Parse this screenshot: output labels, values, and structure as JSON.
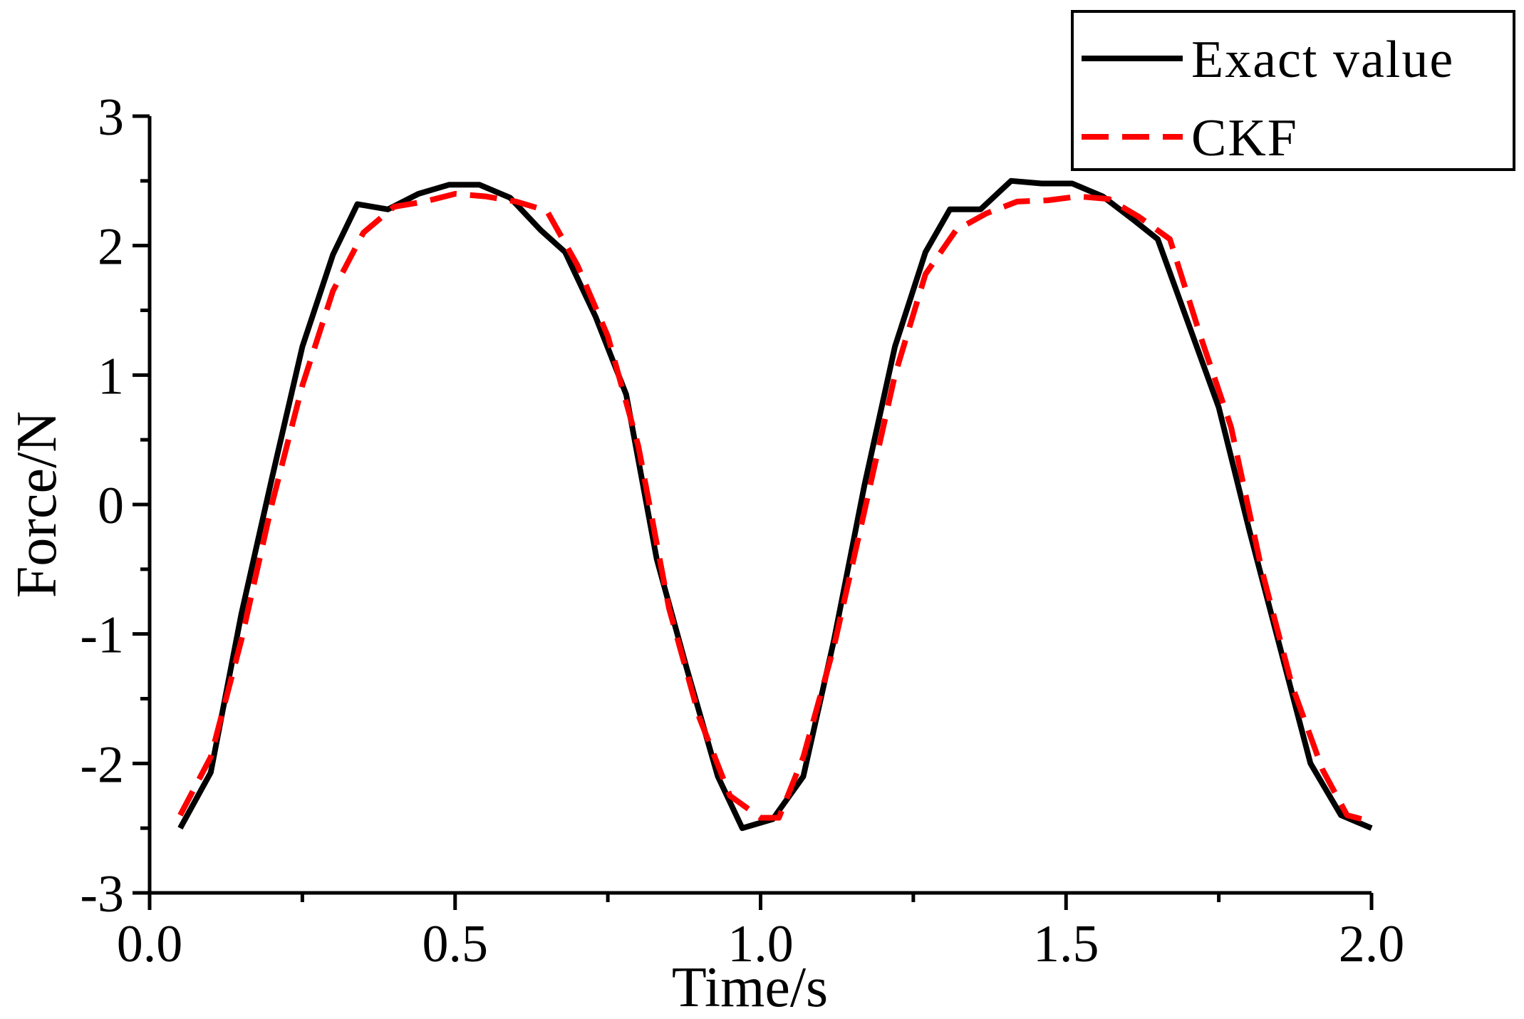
{
  "chart_data": {
    "type": "line",
    "title": "",
    "xlabel": "Time/s",
    "ylabel": "Force/N",
    "xlim": [
      0.0,
      2.0
    ],
    "ylim": [
      -3,
      3
    ],
    "xticks": [
      0.0,
      0.5,
      1.0,
      1.5,
      2.0
    ],
    "xtick_labels": [
      "0.0",
      "0.5",
      "1.0",
      "1.5",
      "2.0"
    ],
    "yticks": [
      -3,
      -2,
      -1,
      0,
      1,
      2,
      3
    ],
    "ytick_labels": [
      "-3",
      "-2",
      "-1",
      "0",
      "1",
      "2",
      "3"
    ],
    "legend_position": "top-right",
    "series": [
      {
        "name": "Exact value",
        "color": "#000000",
        "style": "solid",
        "x": [
          0.05,
          0.1,
          0.15,
          0.2,
          0.25,
          0.3,
          0.34,
          0.39,
          0.44,
          0.49,
          0.54,
          0.59,
          0.64,
          0.68,
          0.73,
          0.78,
          0.83,
          0.88,
          0.93,
          0.97,
          1.02,
          1.07,
          1.12,
          1.17,
          1.22,
          1.27,
          1.31,
          1.36,
          1.41,
          1.46,
          1.51,
          1.56,
          1.61,
          1.65,
          1.7,
          1.75,
          1.8,
          1.85,
          1.9,
          1.95,
          2.0
        ],
        "values": [
          -2.5,
          -2.07,
          -0.85,
          0.2,
          1.22,
          1.93,
          2.32,
          2.28,
          2.4,
          2.47,
          2.47,
          2.37,
          2.12,
          1.95,
          1.45,
          0.85,
          -0.42,
          -1.28,
          -2.1,
          -2.5,
          -2.43,
          -2.1,
          -1.05,
          0.15,
          1.22,
          1.95,
          2.28,
          2.28,
          2.5,
          2.48,
          2.48,
          2.38,
          2.2,
          2.05,
          1.4,
          0.75,
          -0.2,
          -1.1,
          -2.0,
          -2.4,
          -2.5
        ]
      },
      {
        "name": "CKF",
        "color": "#ff0000",
        "style": "dashed",
        "x": [
          0.05,
          0.1,
          0.15,
          0.2,
          0.25,
          0.3,
          0.35,
          0.4,
          0.45,
          0.5,
          0.55,
          0.6,
          0.65,
          0.7,
          0.75,
          0.8,
          0.85,
          0.9,
          0.95,
          1.0,
          1.03,
          1.07,
          1.12,
          1.17,
          1.22,
          1.27,
          1.32,
          1.37,
          1.42,
          1.47,
          1.52,
          1.57,
          1.62,
          1.67,
          1.72,
          1.77,
          1.82,
          1.87,
          1.92,
          1.96,
          2.0
        ],
        "values": [
          -2.4,
          -1.95,
          -1.05,
          0.0,
          0.92,
          1.65,
          2.1,
          2.3,
          2.34,
          2.4,
          2.38,
          2.34,
          2.27,
          1.85,
          1.3,
          0.45,
          -0.8,
          -1.65,
          -2.25,
          -2.42,
          -2.42,
          -1.95,
          -1.1,
          -0.05,
          1.0,
          1.78,
          2.12,
          2.25,
          2.34,
          2.35,
          2.38,
          2.36,
          2.22,
          2.05,
          1.3,
          0.6,
          -0.5,
          -1.4,
          -2.05,
          -2.4,
          -2.45
        ]
      }
    ]
  }
}
